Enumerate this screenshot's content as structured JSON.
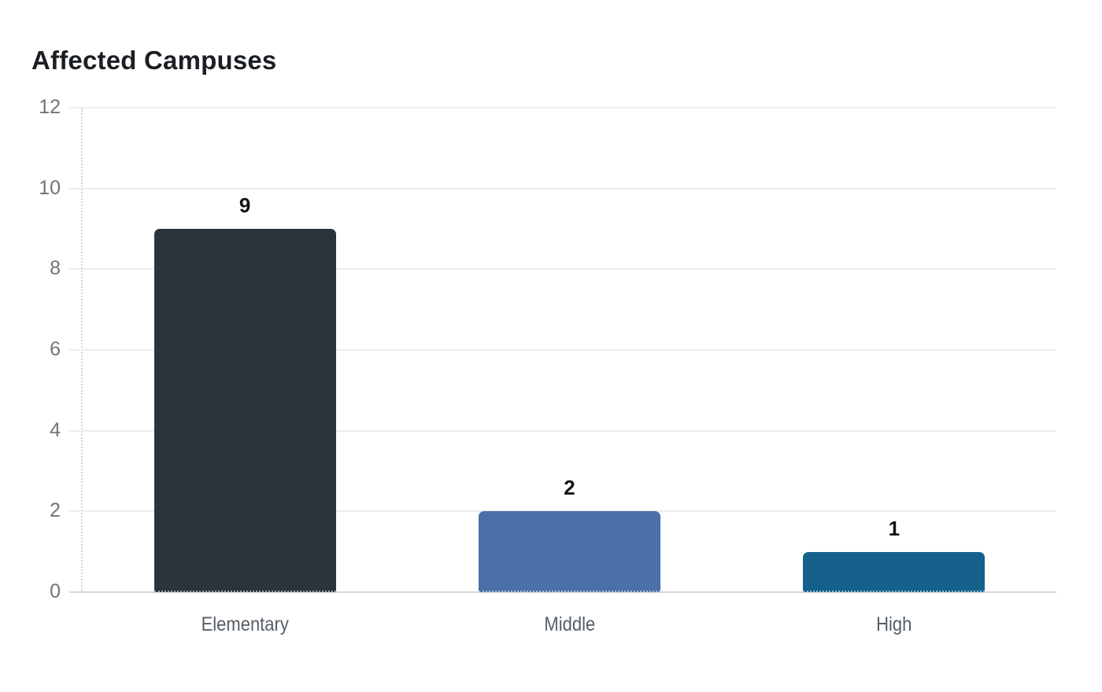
{
  "chart_data": {
    "type": "bar",
    "title": "Affected Campuses",
    "categories": [
      "Elementary",
      "Middle",
      "High"
    ],
    "values": [
      9,
      2,
      1
    ],
    "value_labels": [
      "9",
      "2",
      "1"
    ],
    "series": [
      {
        "name": "Affected Campuses",
        "values": [
          9,
          2,
          1
        ]
      }
    ],
    "bar_colors": [
      "#2b343a",
      "#4a6fa9",
      "#16618c"
    ],
    "xlabel": "",
    "ylabel": "",
    "ylim": [
      0,
      12
    ],
    "yticks": [
      0,
      2,
      4,
      6,
      8,
      10,
      12
    ],
    "grid": "horizontal-light",
    "legend": "none",
    "colors": {
      "background": "#ffffff",
      "title_text": "#1b1f23",
      "value_label_text": "#111317",
      "y_tick_text": "#6e757c",
      "x_tick_text": "#565e66",
      "gridline": "#ededed",
      "baseline": "#d7d7d7",
      "axis_dotted": "#d2d5d8"
    }
  }
}
